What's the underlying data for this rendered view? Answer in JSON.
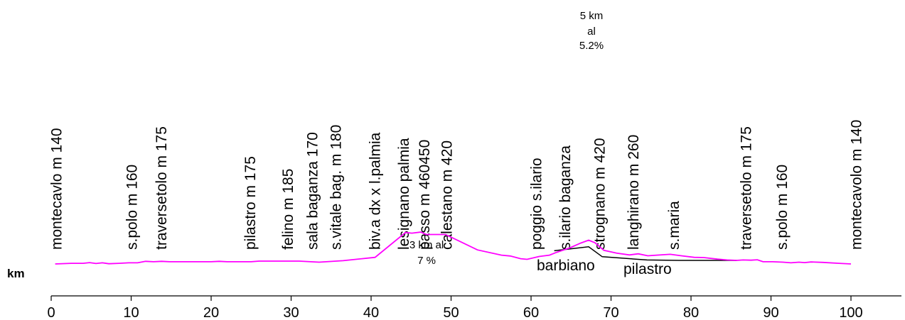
{
  "chart_data": {
    "type": "line",
    "unit_label": "km",
    "xlim": [
      0,
      110
    ],
    "x_ticks": [
      0,
      10,
      20,
      30,
      40,
      50,
      60,
      70,
      80,
      90,
      100
    ],
    "colors": {
      "profile": "#ff00ff",
      "variant": "#000000",
      "axis": "#000000"
    },
    "grid": false,
    "series": [
      {
        "points": [
          [
            0.5,
            140
          ],
          [
            2.5,
            143
          ],
          [
            4,
            143
          ],
          [
            4.8,
            146
          ],
          [
            5.6,
            142
          ],
          [
            6.4,
            145
          ],
          [
            7.2,
            141
          ],
          [
            8.5,
            143
          ],
          [
            9.7,
            145
          ],
          [
            10.8,
            145
          ],
          [
            11.8,
            152
          ],
          [
            12.8,
            150
          ],
          [
            13.8,
            152
          ],
          [
            14.8,
            150
          ],
          [
            20,
            150
          ],
          [
            21,
            152
          ],
          [
            22,
            150
          ],
          [
            25,
            150
          ],
          [
            26,
            153
          ],
          [
            31,
            153
          ],
          [
            33.5,
            148
          ],
          [
            36.5,
            155
          ],
          [
            40.5,
            170
          ],
          [
            44.3,
            283
          ],
          [
            45.1,
            280
          ],
          [
            46.2,
            285
          ],
          [
            46.9,
            274
          ],
          [
            48.7,
            274
          ],
          [
            49.3,
            274
          ],
          [
            53.3,
            204
          ],
          [
            56.3,
            180
          ],
          [
            57.4,
            176
          ],
          [
            58.7,
            164
          ],
          [
            59.5,
            161
          ],
          [
            61,
            174
          ],
          [
            62.3,
            180
          ],
          [
            63.2,
            193
          ],
          [
            64.9,
            214
          ],
          [
            66.2,
            235
          ],
          [
            67.2,
            248
          ],
          [
            68,
            236
          ],
          [
            69.1,
            202
          ],
          [
            70.7,
            189
          ],
          [
            72.3,
            181
          ],
          [
            73.4,
            186
          ],
          [
            74.6,
            177
          ],
          [
            75.7,
            180
          ],
          [
            77.4,
            184
          ],
          [
            78.8,
            177
          ],
          [
            80.4,
            170
          ],
          [
            81.6,
            169
          ],
          [
            83.3,
            162
          ],
          [
            84.5,
            158
          ],
          [
            85.7,
            156
          ],
          [
            86.5,
            158
          ],
          [
            87.5,
            157
          ],
          [
            88.3,
            159
          ],
          [
            89,
            150
          ],
          [
            90.2,
            150
          ],
          [
            91.5,
            148
          ],
          [
            92.5,
            145
          ],
          [
            93.5,
            148
          ],
          [
            94.2,
            146
          ],
          [
            95,
            149
          ],
          [
            96.5,
            147
          ],
          [
            98.5,
            143
          ],
          [
            100,
            140
          ]
        ]
      },
      {
        "points": [
          [
            62.9,
            200
          ],
          [
            67.2,
            218
          ],
          [
            68.9,
            173
          ],
          [
            74.5,
            158
          ],
          [
            78.5,
            156
          ],
          [
            85.7,
            156
          ]
        ]
      }
    ],
    "places": [
      {
        "km": 1.3,
        "label": "montecavlo m 140"
      },
      {
        "km": 10.7,
        "label": "s.polo m 160"
      },
      {
        "km": 14.4,
        "label": "traversetolo m 175"
      },
      {
        "km": 25.5,
        "label": "pilastro m 175"
      },
      {
        "km": 30.2,
        "label": "felino m 185"
      },
      {
        "km": 33.3,
        "label": "sala baganza 170"
      },
      {
        "km": 36.2,
        "label": "s.vitale bag. m 180"
      },
      {
        "km": 41.1,
        "label": "biv.a dx x l.palmia"
      },
      {
        "km": 44.7,
        "label": "lesignano palmia"
      },
      {
        "km": 47.3,
        "label": "passo m 460450"
      },
      {
        "km": 50.1,
        "label": "calestano m 420"
      },
      {
        "km": 61.3,
        "label": "poggio s.ilario"
      },
      {
        "km": 64.9,
        "label": "s.ilario baganza"
      },
      {
        "km": 69.2,
        "label": "strognano m 420"
      },
      {
        "km": 73.4,
        "label": "langhirano m 260"
      },
      {
        "km": 78.5,
        "label": "s.maria"
      },
      {
        "km": 87.5,
        "label": "traversetolo m 175"
      },
      {
        "km": 92,
        "label": "s.polo m 160"
      },
      {
        "km": 101.3,
        "label": "montecavolo m 140"
      }
    ],
    "annotations": {
      "climb1": [
        "3 km al",
        "7 %"
      ],
      "climb2": [
        "5 km",
        "al",
        "5.2%"
      ],
      "barbiano": "barbiano",
      "pilastro": "pilastro"
    }
  }
}
